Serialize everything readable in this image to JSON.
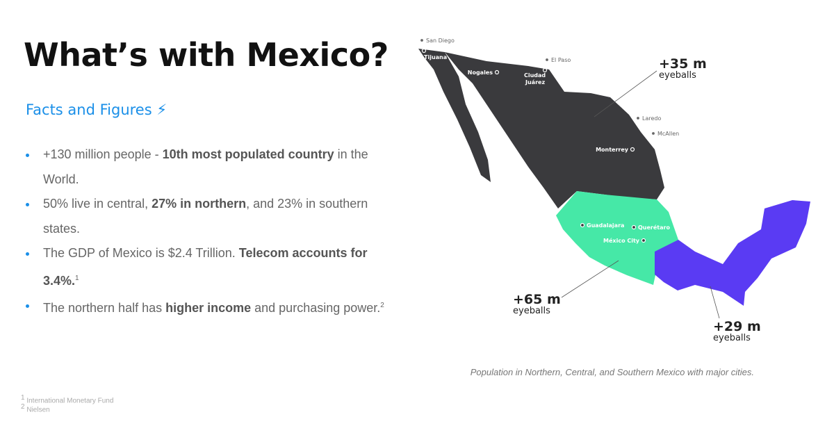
{
  "title": "What’s with Mexico?",
  "subtitle": "Facts and Figures ⚡",
  "bullets": [
    [
      {
        "text": "+130 million people - "
      },
      {
        "text": "10th most populated country",
        "bold": true
      },
      {
        "text": " in the World."
      }
    ],
    [
      {
        "text": "50% live in central, "
      },
      {
        "text": "27% in northern",
        "bold": true
      },
      {
        "text": ", and 23% in southern states."
      }
    ],
    [
      {
        "text": "The GDP of Mexico is $2.4 Trillion. "
      },
      {
        "text": "Telecom accounts for 3.4%.",
        "bold": true
      },
      {
        "text": "1",
        "sup": true
      }
    ],
    [
      {
        "text": "The northern half has "
      },
      {
        "text": "higher income",
        "bold": true
      },
      {
        "text": " and purchasing power."
      },
      {
        "text": "2",
        "sup": true
      }
    ]
  ],
  "footnotes": [
    {
      "mark": "1",
      "text": "International Monetary Fund"
    },
    {
      "mark": "2",
      "text": "Nielsen"
    }
  ],
  "map": {
    "cities": [
      "San Diego",
      "Tijuana",
      "El Paso",
      "Nogales",
      "Ciudad Juárez",
      "Laredo",
      "McAllen",
      "Monterrey",
      "Guadalajara",
      "Querétaro",
      "México City"
    ],
    "regions": [
      {
        "value": "+35 m",
        "unit": "eyeballs"
      },
      {
        "value": "+65 m",
        "unit": "eyeballs"
      },
      {
        "value": "+29 m",
        "unit": "eyeballs"
      }
    ],
    "caption": "Population in Northern, Central, and Southern Mexico with major cities."
  }
}
